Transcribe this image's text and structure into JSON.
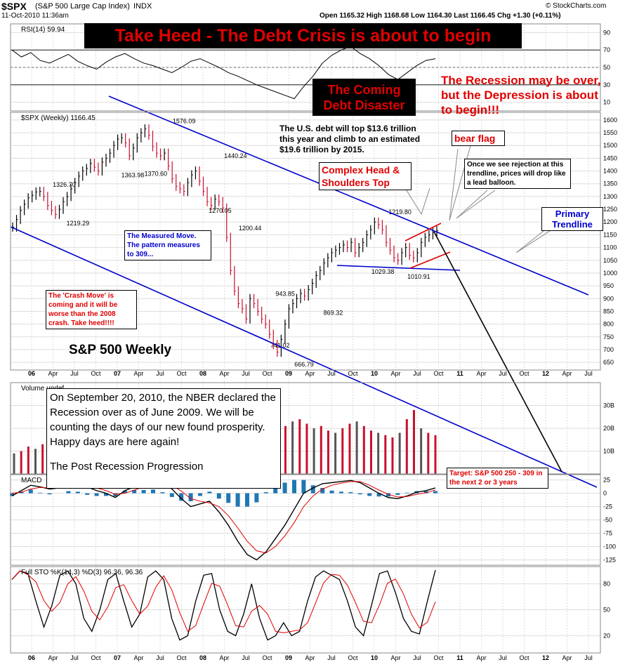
{
  "header": {
    "symbol": "$SPX",
    "name": "(S&P 500 Large Cap Index)",
    "exchange": "INDX",
    "date": "11-Oct-2010 11:36am",
    "copyright": "© StockCharts.com",
    "ohlc": "Open 1165.32  High 1168.68  Low 1164.30  Last 1166.45  Chg +1.30 (+0.11%)"
  },
  "annotations": {
    "title_banner": "Take Heed - The Debt Crisis is about to begin",
    "coming_disaster": "The Coming Debt Disaster",
    "recession_note": "The Recession may be over, but the Depression is about  to begin!!!",
    "debt_note": "The U.S. debt will top $13.6 trillion this year and climb to an estimated $19.6 trillion by 2015.",
    "bear_flag": "bear flag",
    "head_shoulders": "Complex Head & Shoulders Top",
    "rejection_note": "Once we see rejection at this trendline, prices will drop like a lead balloon.",
    "primary_trendline": "Primary Trendline",
    "measured_move": "The Measured Move. The pattern measures to 309...",
    "crash_move": "The 'Crash Move' is coming and it will be worse than the 2008 crash. Take heed!!!!",
    "sp500_weekly": "S&P 500 Weekly",
    "nber_note": "On September 20, 2010, the NBER declared the Recession over as of June 2009. We will be counting the days of our new found prosperity. Happy days are here again!",
    "post_recession": "The Post Recession Progression",
    "target": "Target:  S&P 500 250 - 309 in the next 2 or 3 years"
  },
  "chart_data": [
    {
      "type": "line",
      "panel": "RSI",
      "label": "RSI(14) 59.94",
      "y_ticks": [
        10,
        30,
        50,
        70,
        90
      ],
      "ylim": [
        0,
        100
      ],
      "values": [
        70,
        62,
        67,
        58,
        55,
        60,
        65,
        57,
        52,
        48,
        56,
        62,
        66,
        60,
        55,
        52,
        48,
        44,
        50,
        57,
        60,
        55,
        50,
        44,
        40,
        35,
        30,
        26,
        22,
        18,
        14,
        28,
        40,
        55,
        64,
        70,
        74,
        66,
        60,
        52,
        42,
        36,
        44,
        52,
        58,
        60
      ]
    },
    {
      "type": "bar",
      "panel": "price",
      "label": "$SPX (Weekly) 1166.45",
      "y_ticks": [
        650,
        700,
        750,
        800,
        850,
        900,
        950,
        1000,
        1050,
        1100,
        1150,
        1200,
        1250,
        1300,
        1350,
        1400,
        1450,
        1500,
        1550,
        1600
      ],
      "ylim": [
        620,
        1630
      ],
      "point_labels": [
        {
          "date": "2006.38",
          "value": 1326.7,
          "text": "1326.70"
        },
        {
          "date": "2006.54",
          "value": 1219.29,
          "text": "1219.29"
        },
        {
          "date": "2007.18",
          "value": 1363.98,
          "text": "1363.98"
        },
        {
          "date": "2007.45",
          "value": 1370.6,
          "text": "1370.60"
        },
        {
          "date": "2007.78",
          "value": 1576.09,
          "text": "1576.09"
        },
        {
          "date": "2008.20",
          "value": 1270.05,
          "text": "1270.05"
        },
        {
          "date": "2008.38",
          "value": 1440.24,
          "text": "1440.24"
        },
        {
          "date": "2008.55",
          "value": 1200.44,
          "text": "1200.44"
        },
        {
          "date": "2008.96",
          "value": 943.85,
          "text": "943.85"
        },
        {
          "date": "2008.90",
          "value": 741.02,
          "text": "741.02"
        },
        {
          "date": "2009.18",
          "value": 666.79,
          "text": "666.79"
        },
        {
          "date": "2009.52",
          "value": 869.32,
          "text": "869.32"
        },
        {
          "date": "2010.10",
          "value": 1029.38,
          "text": "1029.38"
        },
        {
          "date": "2010.30",
          "value": 1219.8,
          "text": "1219.80"
        },
        {
          "date": "2010.52",
          "value": 1010.91,
          "text": "1010.91"
        }
      ],
      "closes": [
        1180,
        1210,
        1245,
        1270,
        1295,
        1305,
        1318,
        1320,
        1300,
        1265,
        1245,
        1230,
        1250,
        1280,
        1300,
        1330,
        1355,
        1380,
        1400,
        1410,
        1430,
        1415,
        1400,
        1435,
        1450,
        1470,
        1500,
        1525,
        1530,
        1510,
        1460,
        1490,
        1530,
        1550,
        1565,
        1540,
        1495,
        1470,
        1460,
        1470,
        1420,
        1370,
        1340,
        1330,
        1320,
        1355,
        1385,
        1400,
        1360,
        1320,
        1280,
        1265,
        1290,
        1280,
        1255,
        1140,
        1010,
        930,
        880,
        860,
        820,
        900,
        880,
        850,
        820,
        800,
        760,
        720,
        690,
        740,
        800,
        860,
        880,
        900,
        920,
        910,
        935,
        960,
        990,
        1010,
        1040,
        1060,
        1080,
        1090,
        1100,
        1110,
        1100,
        1120,
        1080,
        1100,
        1120,
        1150,
        1170,
        1200,
        1190,
        1170,
        1120,
        1090,
        1060,
        1050,
        1080,
        1100,
        1070,
        1060,
        1080,
        1120,
        1140,
        1150,
        1160,
        1166
      ]
    },
    {
      "type": "bar",
      "panel": "volume",
      "label": "Volume undef",
      "y_ticks_labels": [
        "10B",
        "20B",
        "30B"
      ],
      "y_ticks": [
        10,
        20,
        30
      ],
      "ylim": [
        0,
        40
      ],
      "values": [
        9,
        10,
        12,
        11,
        13,
        12,
        10,
        11,
        12,
        14,
        13,
        12,
        13,
        12,
        14,
        15,
        14,
        13,
        15,
        17,
        18,
        19,
        20,
        22,
        24,
        28,
        30,
        25,
        22,
        20,
        27,
        31,
        26,
        24,
        22,
        20,
        19,
        18,
        21,
        23,
        24,
        22,
        20,
        21,
        19,
        18,
        20,
        22,
        23,
        21,
        19,
        18,
        17,
        16,
        18,
        24,
        28,
        20,
        18,
        17
      ]
    },
    {
      "type": "line",
      "panel": "MACD",
      "label": "MACD",
      "y_ticks": [
        -125,
        -100,
        -75,
        -50,
        -25,
        0,
        25
      ],
      "ylim": [
        -135,
        35
      ],
      "macd": [
        -5,
        5,
        15,
        12,
        8,
        10,
        18,
        20,
        12,
        5,
        0,
        -8,
        5,
        12,
        18,
        25,
        22,
        8,
        -10,
        -25,
        -20,
        -15,
        -35,
        -60,
        -90,
        -115,
        -125,
        -110,
        -85,
        -60,
        -30,
        0,
        10,
        18,
        20,
        22,
        24,
        20,
        10,
        0,
        -8,
        -10,
        -5,
        2,
        5,
        10
      ],
      "signal": [
        0,
        2,
        8,
        11,
        10,
        10,
        14,
        17,
        15,
        10,
        5,
        -2,
        0,
        6,
        12,
        18,
        20,
        15,
        4,
        -10,
        -15,
        -18,
        -25,
        -42,
        -65,
        -90,
        -108,
        -112,
        -100,
        -80,
        -55,
        -25,
        -5,
        8,
        15,
        19,
        22,
        22,
        15,
        6,
        -2,
        -7,
        -6,
        -2,
        1,
        6
      ],
      "histogram": [
        -5,
        3,
        7,
        1,
        -2,
        0,
        4,
        3,
        -3,
        -5,
        -5,
        -6,
        5,
        6,
        6,
        7,
        2,
        -7,
        -14,
        -15,
        -5,
        3,
        -10,
        -18,
        -25,
        -25,
        -17,
        2,
        15,
        20,
        25,
        25,
        15,
        10,
        5,
        3,
        2,
        -2,
        -5,
        -6,
        -6,
        -3,
        1,
        4,
        4,
        4
      ]
    },
    {
      "type": "line",
      "panel": "stochastic",
      "label": "Full STO %K(14,3) %D(3) 96.36, 96.36",
      "y_ticks": [
        20,
        50,
        80
      ],
      "ylim": [
        0,
        100
      ],
      "k": [
        85,
        95,
        92,
        60,
        30,
        55,
        90,
        95,
        80,
        40,
        25,
        50,
        85,
        92,
        60,
        30,
        45,
        88,
        95,
        85,
        40,
        15,
        20,
        60,
        90,
        92,
        50,
        25,
        20,
        45,
        80,
        40,
        15,
        20,
        35,
        20,
        25,
        60,
        88,
        95,
        90,
        85,
        60,
        30,
        20,
        55,
        92,
        95,
        70,
        40,
        25,
        22,
        60,
        96
      ]
    }
  ],
  "x_axis": {
    "labels": [
      "06",
      "Apr",
      "Jul",
      "Oct",
      "07",
      "Apr",
      "Jul",
      "Oct",
      "08",
      "Apr",
      "Jul",
      "Oct",
      "09",
      "Apr",
      "Jul",
      "Oct",
      "10",
      "Apr",
      "Jul",
      "Oct",
      "11",
      "Apr",
      "Jul",
      "Oct",
      "12",
      "Apr",
      "Jul"
    ]
  },
  "colors": {
    "up_bar": "#000000",
    "down_bar": "#c8102e",
    "trendline": "#0000cc",
    "annotation_red": "#e00000",
    "macd_hist": "#1f77b4",
    "grid": "#dddddd"
  }
}
